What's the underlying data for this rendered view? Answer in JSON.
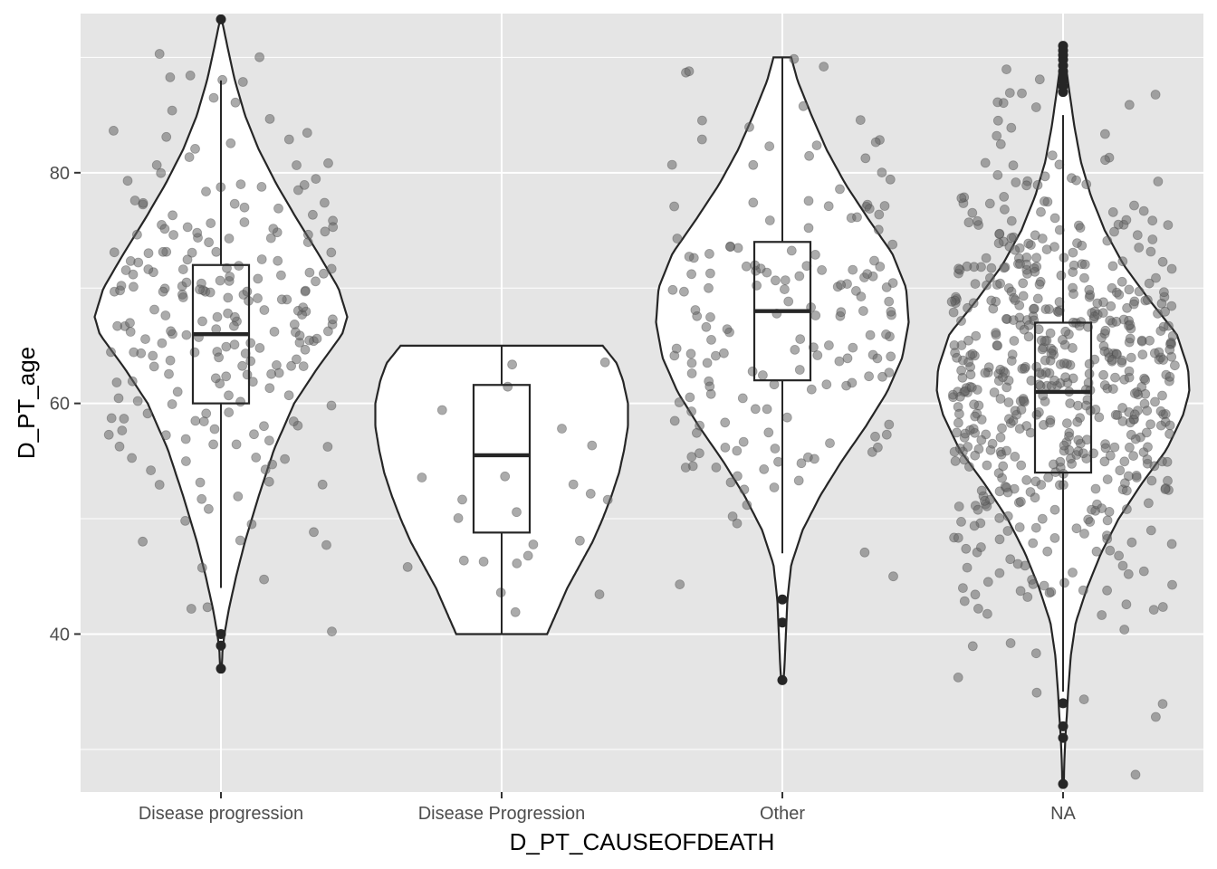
{
  "chart_data": {
    "type": "violin",
    "title": "",
    "xlabel": "D_PT_CAUSEOFDEATH",
    "ylabel": "D_PT_age",
    "ylim": [
      26.3,
      93.8
    ],
    "y_ticks": [
      40,
      60,
      80
    ],
    "y_minor": [
      30,
      50,
      70,
      90
    ],
    "grid": true,
    "categories": [
      "Disease progression",
      "Disease Progression",
      "Other",
      "NA"
    ],
    "colors": {
      "panel": "#e5e5e5",
      "grid": "#ffffff",
      "violin_fill": "#ffffff",
      "outline": "#262626",
      "point": "#666666",
      "outlier": "#262626"
    },
    "groups": [
      {
        "category": "Disease progression",
        "n_points": 230,
        "seed": 11,
        "violin": {
          "min": 37,
          "max": 93.3,
          "profile": [
            [
              37,
              0.006
            ],
            [
              38.5,
              0.012
            ],
            [
              40,
              0.028
            ],
            [
              42,
              0.06
            ],
            [
              45,
              0.12
            ],
            [
              48,
              0.19
            ],
            [
              52,
              0.3
            ],
            [
              56,
              0.42
            ],
            [
              60,
              0.58
            ],
            [
              63,
              0.76
            ],
            [
              66,
              0.96
            ],
            [
              67.5,
              1.0
            ],
            [
              70,
              0.93
            ],
            [
              73,
              0.77
            ],
            [
              76,
              0.6
            ],
            [
              79,
              0.44
            ],
            [
              82,
              0.3
            ],
            [
              85,
              0.19
            ],
            [
              88,
              0.11
            ],
            [
              90.5,
              0.06
            ],
            [
              93.3,
              0.006
            ]
          ]
        },
        "box": {
          "q1": 60,
          "median": 66,
          "q3": 72,
          "whisker_low": 44,
          "whisker_high": 88
        },
        "outliers": [
          93.3,
          40,
          39,
          37
        ]
      },
      {
        "category": "Disease Progression",
        "n_points": 24,
        "seed": 23,
        "violin": {
          "min": 40,
          "max": 65,
          "profile": [
            [
              40,
              0.36
            ],
            [
              42,
              0.44
            ],
            [
              44,
              0.52
            ],
            [
              46,
              0.62
            ],
            [
              48,
              0.72
            ],
            [
              50,
              0.8
            ],
            [
              52,
              0.87
            ],
            [
              54,
              0.93
            ],
            [
              56,
              0.97
            ],
            [
              58,
              1.0
            ],
            [
              60,
              1.0
            ],
            [
              62,
              0.96
            ],
            [
              63.5,
              0.91
            ],
            [
              65,
              0.8
            ]
          ]
        },
        "box": {
          "q1": 48.8,
          "median": 55.5,
          "q3": 61.6,
          "whisker_low": 40,
          "whisker_high": 65
        },
        "outliers": []
      },
      {
        "category": "Other",
        "n_points": 170,
        "seed": 37,
        "violin": {
          "min": 36,
          "max": 90,
          "profile": [
            [
              36,
              0.01
            ],
            [
              37.5,
              0.018
            ],
            [
              40,
              0.028
            ],
            [
              43,
              0.04
            ],
            [
              46,
              0.07
            ],
            [
              49,
              0.16
            ],
            [
              52,
              0.3
            ],
            [
              55,
              0.47
            ],
            [
              58,
              0.66
            ],
            [
              61,
              0.83
            ],
            [
              64,
              0.95
            ],
            [
              67,
              1.0
            ],
            [
              70,
              0.98
            ],
            [
              73,
              0.87
            ],
            [
              76,
              0.68
            ],
            [
              79,
              0.5
            ],
            [
              82,
              0.35
            ],
            [
              85,
              0.23
            ],
            [
              88,
              0.12
            ],
            [
              90,
              0.07
            ]
          ]
        },
        "box": {
          "q1": 62,
          "median": 68,
          "q3": 74,
          "whisker_low": 47,
          "whisker_high": 90
        },
        "outliers": [
          43,
          41,
          36
        ]
      },
      {
        "category": "NA",
        "n_points": 600,
        "seed": 53,
        "violin": {
          "min": 27,
          "max": 91,
          "profile": [
            [
              27,
              0.006
            ],
            [
              29,
              0.01
            ],
            [
              31,
              0.018
            ],
            [
              33,
              0.03
            ],
            [
              35,
              0.04
            ],
            [
              38,
              0.06
            ],
            [
              41,
              0.1
            ],
            [
              44,
              0.19
            ],
            [
              47,
              0.3
            ],
            [
              50,
              0.44
            ],
            [
              53,
              0.62
            ],
            [
              56,
              0.82
            ],
            [
              59,
              0.95
            ],
            [
              61,
              1.0
            ],
            [
              63,
              0.99
            ],
            [
              66,
              0.9
            ],
            [
              69,
              0.68
            ],
            [
              72,
              0.48
            ],
            [
              75,
              0.33
            ],
            [
              78,
              0.22
            ],
            [
              81,
              0.14
            ],
            [
              84,
              0.09
            ],
            [
              87,
              0.05
            ],
            [
              89,
              0.025
            ],
            [
              91,
              0.01
            ]
          ]
        },
        "box": {
          "q1": 54,
          "median": 61,
          "q3": 67,
          "whisker_low": 35,
          "whisker_high": 85
        },
        "outliers": [
          91,
          90.6,
          90.2,
          89.8,
          89.3,
          88.8,
          88.4,
          88,
          87.5,
          87,
          34,
          32,
          31,
          27
        ]
      }
    ]
  }
}
